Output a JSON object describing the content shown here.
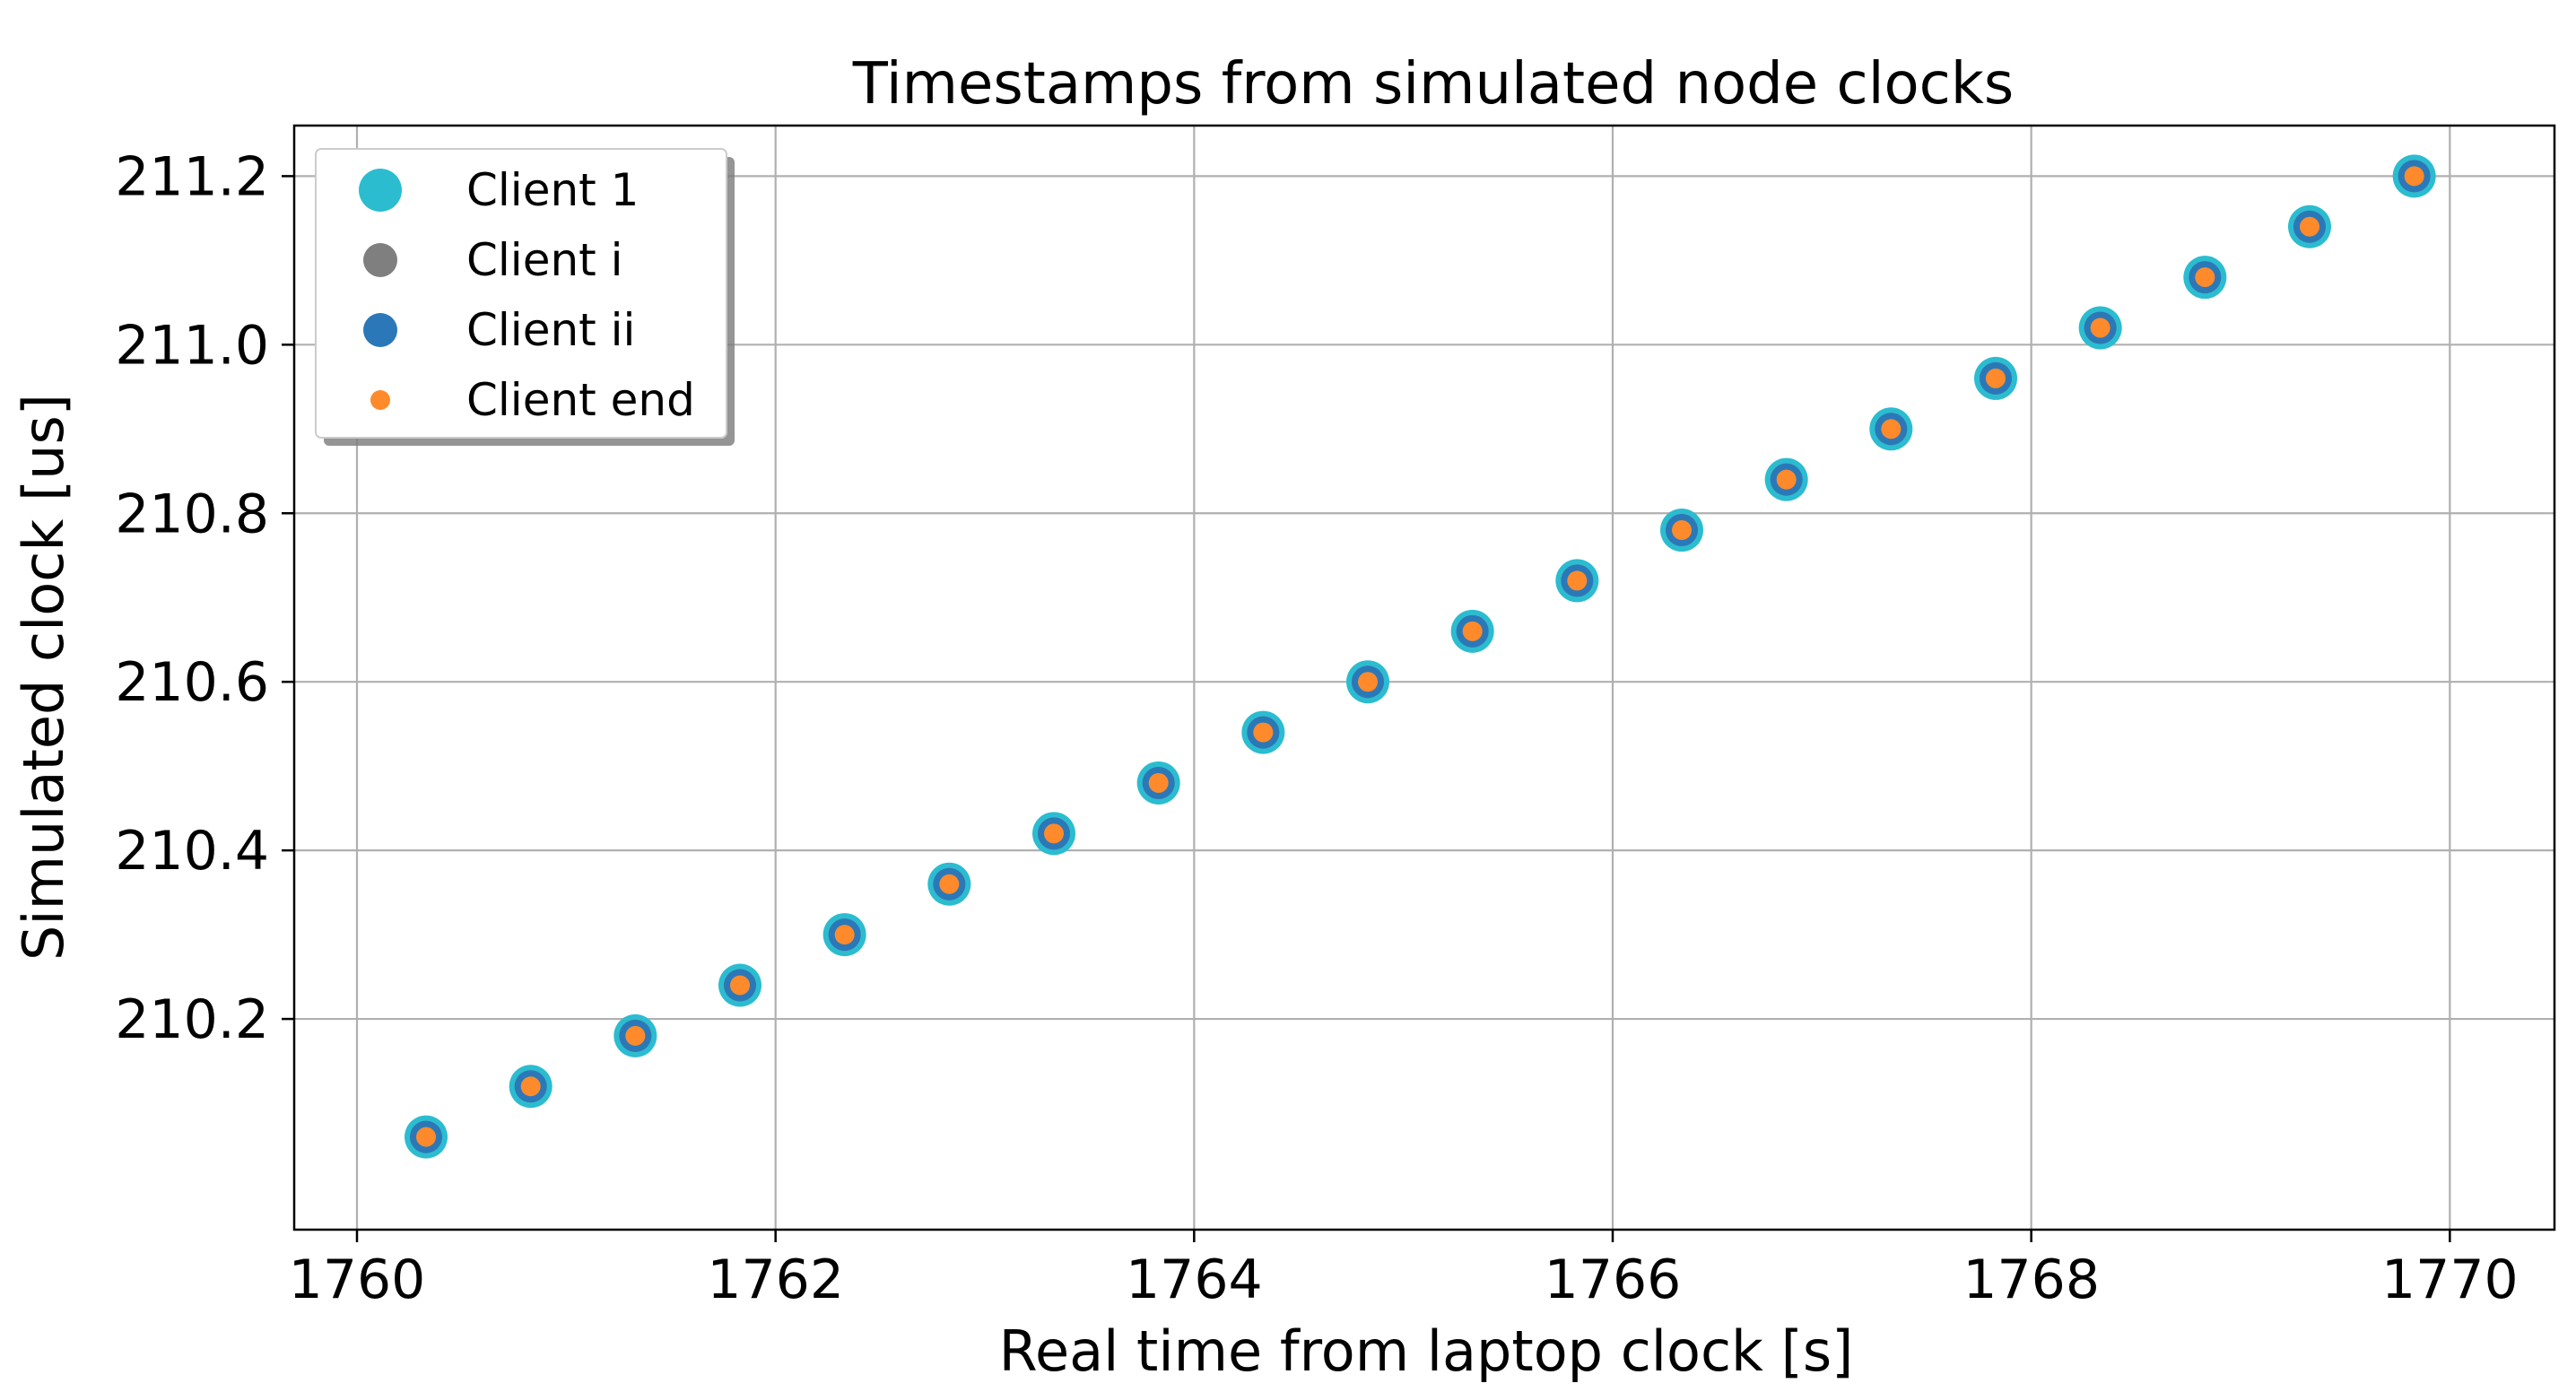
{
  "chart_data": {
    "type": "scatter",
    "title": "Timestamps from simulated node clocks",
    "xlabel": "Real time from laptop clock [s]",
    "ylabel": "Simulated clock [us]",
    "xlim": [
      1759.7,
      1770.5
    ],
    "ylim": [
      209.95,
      211.26
    ],
    "x_ticks": [
      1760,
      1762,
      1764,
      1766,
      1768,
      1770
    ],
    "x_tick_labels": [
      "1760",
      "1762",
      "1764",
      "1766",
      "1768",
      "1770"
    ],
    "y_ticks": [
      210.2,
      210.4,
      210.6,
      210.8,
      211.0,
      211.2
    ],
    "y_tick_labels": [
      "210.2",
      "210.4",
      "210.6",
      "210.8",
      "211.0",
      "211.2"
    ],
    "grid": true,
    "legend_position": "top-left",
    "x": [
      1760.33,
      1760.83,
      1761.33,
      1761.83,
      1762.33,
      1762.83,
      1763.33,
      1763.83,
      1764.33,
      1764.83,
      1765.33,
      1765.83,
      1766.33,
      1766.83,
      1767.33,
      1767.83,
      1768.33,
      1768.83,
      1769.33,
      1769.83
    ],
    "series": [
      {
        "name": "Client 1",
        "color": "#2bbcd0",
        "marker_size": "large",
        "y": [
          210.06,
          210.12,
          210.18,
          210.24,
          210.3,
          210.36,
          210.42,
          210.48,
          210.54,
          210.6,
          210.66,
          210.72,
          210.78,
          210.84,
          210.9,
          210.96,
          211.02,
          211.08,
          211.14,
          211.2
        ]
      },
      {
        "name": "Client i",
        "color": "#7f7f7f",
        "marker_size": "medium",
        "y": [
          210.06,
          210.12,
          210.18,
          210.24,
          210.3,
          210.36,
          210.42,
          210.48,
          210.54,
          210.6,
          210.66,
          210.72,
          210.78,
          210.84,
          210.9,
          210.96,
          211.02,
          211.08,
          211.14,
          211.2
        ]
      },
      {
        "name": "Client ii",
        "color": "#2b78b8",
        "marker_size": "medium",
        "y": [
          210.06,
          210.12,
          210.18,
          210.24,
          210.3,
          210.36,
          210.42,
          210.48,
          210.54,
          210.6,
          210.66,
          210.72,
          210.78,
          210.84,
          210.9,
          210.96,
          211.02,
          211.08,
          211.14,
          211.2
        ]
      },
      {
        "name": "Client end",
        "color": "#ff8a2b",
        "marker_size": "small",
        "y": [
          210.06,
          210.12,
          210.18,
          210.24,
          210.3,
          210.36,
          210.42,
          210.48,
          210.54,
          210.6,
          210.66,
          210.72,
          210.78,
          210.84,
          210.9,
          210.96,
          211.02,
          211.08,
          211.14,
          211.2
        ]
      }
    ]
  }
}
